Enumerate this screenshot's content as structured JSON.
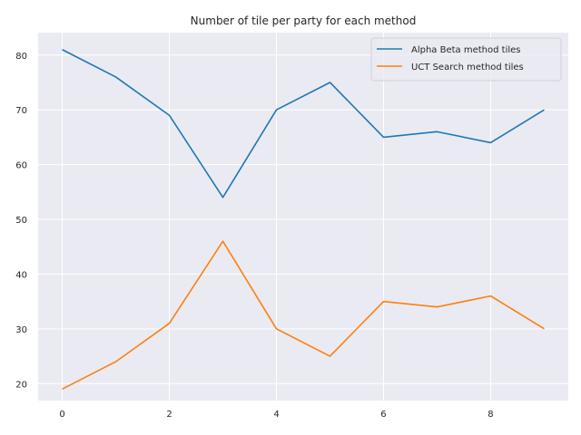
{
  "chart_data": {
    "type": "line",
    "title": "Number of tile per party for each method",
    "xlabel": "",
    "ylabel": "",
    "x": [
      0,
      1,
      2,
      3,
      4,
      5,
      6,
      7,
      8,
      9
    ],
    "series": [
      {
        "name": "Alpha Beta method tiles",
        "color": "#1f77b4",
        "values": [
          81,
          76,
          69,
          54,
          70,
          75,
          65,
          66,
          64,
          70
        ]
      },
      {
        "name": "UCT Search method tiles",
        "color": "#ff7f0e",
        "values": [
          19,
          24,
          31,
          46,
          30,
          25,
          35,
          34,
          36,
          30
        ]
      }
    ],
    "xlim": [
      -0.45,
      9.45
    ],
    "ylim": [
      16.9,
      84.1
    ],
    "xticks": [
      0,
      2,
      4,
      6,
      8
    ],
    "xtick_labels": [
      "0",
      "2",
      "4",
      "6",
      "8"
    ],
    "yticks": [
      20,
      30,
      40,
      50,
      60,
      70,
      80
    ],
    "ytick_labels": [
      "20",
      "30",
      "40",
      "50",
      "60",
      "70",
      "80"
    ],
    "grid": true,
    "legend_position": "top-right",
    "colors": {
      "axes_background": "#eaeaf2",
      "grid": "#ffffff"
    }
  }
}
